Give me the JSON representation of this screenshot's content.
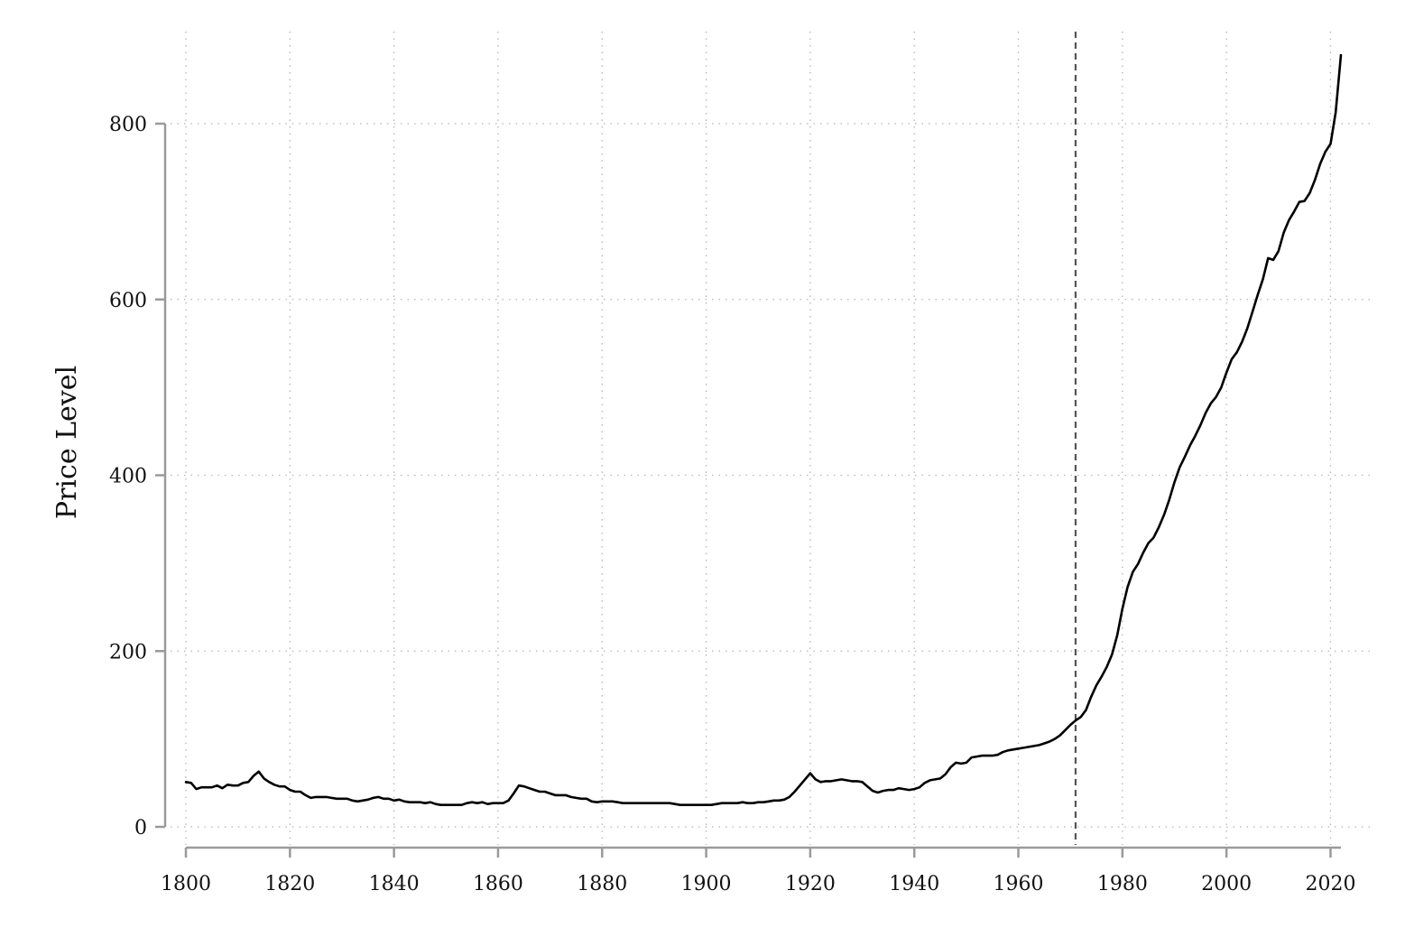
{
  "chart_data": {
    "type": "line",
    "title": "",
    "xlabel": "",
    "ylabel": "Price Level",
    "xlim": [
      1800,
      2022
    ],
    "ylim": [
      0,
      800
    ],
    "x_ticks": [
      1800,
      1820,
      1840,
      1860,
      1880,
      1900,
      1920,
      1940,
      1960,
      1980,
      2000,
      2020
    ],
    "y_ticks": [
      0,
      200,
      400,
      600,
      800
    ],
    "grid": "dotted, both axes",
    "reference_line": {
      "x": 1971,
      "style": "dashed",
      "color": "#555555"
    },
    "line_color": "#000000",
    "series": [
      {
        "name": "",
        "points": [
          [
            1800,
            51
          ],
          [
            1801,
            50
          ],
          [
            1802,
            43
          ],
          [
            1803,
            45
          ],
          [
            1804,
            45
          ],
          [
            1805,
            45
          ],
          [
            1806,
            47
          ],
          [
            1807,
            44
          ],
          [
            1808,
            48
          ],
          [
            1809,
            47
          ],
          [
            1810,
            47
          ],
          [
            1811,
            50
          ],
          [
            1812,
            51
          ],
          [
            1813,
            58
          ],
          [
            1814,
            63
          ],
          [
            1815,
            55
          ],
          [
            1816,
            51
          ],
          [
            1817,
            48
          ],
          [
            1818,
            46
          ],
          [
            1819,
            46
          ],
          [
            1820,
            42
          ],
          [
            1821,
            40
          ],
          [
            1822,
            40
          ],
          [
            1823,
            36
          ],
          [
            1824,
            33
          ],
          [
            1825,
            34
          ],
          [
            1826,
            34
          ],
          [
            1827,
            34
          ],
          [
            1828,
            33
          ],
          [
            1829,
            32
          ],
          [
            1830,
            32
          ],
          [
            1831,
            32
          ],
          [
            1832,
            30
          ],
          [
            1833,
            29
          ],
          [
            1834,
            30
          ],
          [
            1835,
            31
          ],
          [
            1836,
            33
          ],
          [
            1837,
            34
          ],
          [
            1838,
            32
          ],
          [
            1839,
            32
          ],
          [
            1840,
            30
          ],
          [
            1841,
            31
          ],
          [
            1842,
            29
          ],
          [
            1843,
            28
          ],
          [
            1844,
            28
          ],
          [
            1845,
            28
          ],
          [
            1846,
            27
          ],
          [
            1847,
            28
          ],
          [
            1848,
            26
          ],
          [
            1849,
            25
          ],
          [
            1850,
            25
          ],
          [
            1851,
            25
          ],
          [
            1852,
            25
          ],
          [
            1853,
            25
          ],
          [
            1854,
            27
          ],
          [
            1855,
            28
          ],
          [
            1856,
            27
          ],
          [
            1857,
            28
          ],
          [
            1858,
            26
          ],
          [
            1859,
            27
          ],
          [
            1860,
            27
          ],
          [
            1861,
            27
          ],
          [
            1862,
            30
          ],
          [
            1863,
            38
          ],
          [
            1864,
            47
          ],
          [
            1865,
            46
          ],
          [
            1866,
            44
          ],
          [
            1867,
            42
          ],
          [
            1868,
            40
          ],
          [
            1869,
            40
          ],
          [
            1870,
            38
          ],
          [
            1871,
            36
          ],
          [
            1872,
            36
          ],
          [
            1873,
            36
          ],
          [
            1874,
            34
          ],
          [
            1875,
            33
          ],
          [
            1876,
            32
          ],
          [
            1877,
            32
          ],
          [
            1878,
            29
          ],
          [
            1879,
            28
          ],
          [
            1880,
            29
          ],
          [
            1881,
            29
          ],
          [
            1882,
            29
          ],
          [
            1883,
            28
          ],
          [
            1884,
            27
          ],
          [
            1885,
            27
          ],
          [
            1886,
            27
          ],
          [
            1887,
            27
          ],
          [
            1888,
            27
          ],
          [
            1889,
            27
          ],
          [
            1890,
            27
          ],
          [
            1891,
            27
          ],
          [
            1892,
            27
          ],
          [
            1893,
            27
          ],
          [
            1894,
            26
          ],
          [
            1895,
            25
          ],
          [
            1896,
            25
          ],
          [
            1897,
            25
          ],
          [
            1898,
            25
          ],
          [
            1899,
            25
          ],
          [
            1900,
            25
          ],
          [
            1901,
            25
          ],
          [
            1902,
            26
          ],
          [
            1903,
            27
          ],
          [
            1904,
            27
          ],
          [
            1905,
            27
          ],
          [
            1906,
            27
          ],
          [
            1907,
            28
          ],
          [
            1908,
            27
          ],
          [
            1909,
            27
          ],
          [
            1910,
            28
          ],
          [
            1911,
            28
          ],
          [
            1912,
            29
          ],
          [
            1913,
            30
          ],
          [
            1914,
            30
          ],
          [
            1915,
            31
          ],
          [
            1916,
            34
          ],
          [
            1917,
            40
          ],
          [
            1918,
            47
          ],
          [
            1919,
            54
          ],
          [
            1920,
            61
          ],
          [
            1921,
            54
          ],
          [
            1922,
            51
          ],
          [
            1923,
            52
          ],
          [
            1924,
            52
          ],
          [
            1925,
            53
          ],
          [
            1926,
            54
          ],
          [
            1927,
            53
          ],
          [
            1928,
            52
          ],
          [
            1929,
            52
          ],
          [
            1930,
            51
          ],
          [
            1931,
            46
          ],
          [
            1932,
            41
          ],
          [
            1933,
            39
          ],
          [
            1934,
            41
          ],
          [
            1935,
            42
          ],
          [
            1936,
            42
          ],
          [
            1937,
            44
          ],
          [
            1938,
            43
          ],
          [
            1939,
            42
          ],
          [
            1940,
            43
          ],
          [
            1941,
            45
          ],
          [
            1942,
            50
          ],
          [
            1943,
            53
          ],
          [
            1944,
            54
          ],
          [
            1945,
            55
          ],
          [
            1946,
            60
          ],
          [
            1947,
            68
          ],
          [
            1948,
            73
          ],
          [
            1949,
            72
          ],
          [
            1950,
            73
          ],
          [
            1951,
            79
          ],
          [
            1952,
            80
          ],
          [
            1953,
            81
          ],
          [
            1954,
            81
          ],
          [
            1955,
            81
          ],
          [
            1956,
            82
          ],
          [
            1957,
            85
          ],
          [
            1958,
            87
          ],
          [
            1959,
            88
          ],
          [
            1960,
            89
          ],
          [
            1961,
            90
          ],
          [
            1962,
            91
          ],
          [
            1963,
            92
          ],
          [
            1964,
            93
          ],
          [
            1965,
            95
          ],
          [
            1966,
            97
          ],
          [
            1967,
            100
          ],
          [
            1968,
            104
          ],
          [
            1969,
            110
          ],
          [
            1970,
            116
          ],
          [
            1971,
            121
          ],
          [
            1972,
            125
          ],
          [
            1973,
            133
          ],
          [
            1974,
            148
          ],
          [
            1975,
            161
          ],
          [
            1976,
            171
          ],
          [
            1977,
            182
          ],
          [
            1978,
            196
          ],
          [
            1979,
            218
          ],
          [
            1980,
            248
          ],
          [
            1981,
            273
          ],
          [
            1982,
            290
          ],
          [
            1983,
            299
          ],
          [
            1984,
            312
          ],
          [
            1985,
            323
          ],
          [
            1986,
            329
          ],
          [
            1987,
            341
          ],
          [
            1988,
            355
          ],
          [
            1989,
            372
          ],
          [
            1990,
            392
          ],
          [
            1991,
            409
          ],
          [
            1992,
            421
          ],
          [
            1993,
            434
          ],
          [
            1994,
            445
          ],
          [
            1995,
            457
          ],
          [
            1996,
            471
          ],
          [
            1997,
            482
          ],
          [
            1998,
            489
          ],
          [
            1999,
            500
          ],
          [
            2000,
            517
          ],
          [
            2001,
            532
          ],
          [
            2002,
            540
          ],
          [
            2003,
            552
          ],
          [
            2004,
            567
          ],
          [
            2005,
            586
          ],
          [
            2006,
            605
          ],
          [
            2007,
            623
          ],
          [
            2008,
            647
          ],
          [
            2009,
            645
          ],
          [
            2010,
            655
          ],
          [
            2011,
            676
          ],
          [
            2012,
            690
          ],
          [
            2013,
            700
          ],
          [
            2014,
            711
          ],
          [
            2015,
            712
          ],
          [
            2016,
            721
          ],
          [
            2017,
            736
          ],
          [
            2018,
            754
          ],
          [
            2019,
            768
          ],
          [
            2020,
            777
          ],
          [
            2021,
            813
          ],
          [
            2022,
            878
          ]
        ]
      }
    ]
  }
}
